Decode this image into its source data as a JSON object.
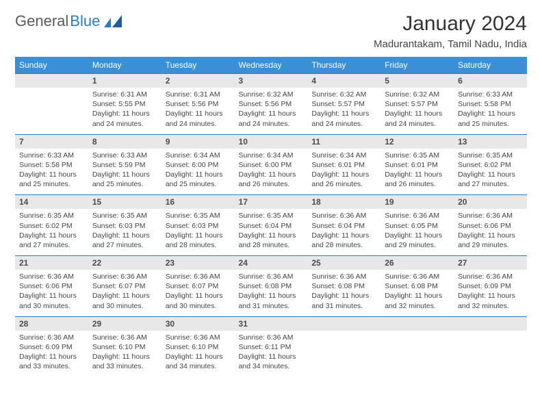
{
  "logo": {
    "text1": "General",
    "text2": "Blue"
  },
  "title": "January 2024",
  "location": "Madurantakam, Tamil Nadu, India",
  "header_bg": "#3b8fd4",
  "daynum_bg": "#e8e8e8",
  "border_color": "#2b7bbf",
  "days_of_week": [
    "Sunday",
    "Monday",
    "Tuesday",
    "Wednesday",
    "Thursday",
    "Friday",
    "Saturday"
  ],
  "weeks": [
    {
      "nums": [
        "",
        "1",
        "2",
        "3",
        "4",
        "5",
        "6"
      ],
      "cells": [
        {
          "sunrise": "",
          "sunset": "",
          "daylight": ""
        },
        {
          "sunrise": "Sunrise: 6:31 AM",
          "sunset": "Sunset: 5:55 PM",
          "daylight": "Daylight: 11 hours and 24 minutes."
        },
        {
          "sunrise": "Sunrise: 6:31 AM",
          "sunset": "Sunset: 5:56 PM",
          "daylight": "Daylight: 11 hours and 24 minutes."
        },
        {
          "sunrise": "Sunrise: 6:32 AM",
          "sunset": "Sunset: 5:56 PM",
          "daylight": "Daylight: 11 hours and 24 minutes."
        },
        {
          "sunrise": "Sunrise: 6:32 AM",
          "sunset": "Sunset: 5:57 PM",
          "daylight": "Daylight: 11 hours and 24 minutes."
        },
        {
          "sunrise": "Sunrise: 6:32 AM",
          "sunset": "Sunset: 5:57 PM",
          "daylight": "Daylight: 11 hours and 24 minutes."
        },
        {
          "sunrise": "Sunrise: 6:33 AM",
          "sunset": "Sunset: 5:58 PM",
          "daylight": "Daylight: 11 hours and 25 minutes."
        }
      ]
    },
    {
      "nums": [
        "7",
        "8",
        "9",
        "10",
        "11",
        "12",
        "13"
      ],
      "cells": [
        {
          "sunrise": "Sunrise: 6:33 AM",
          "sunset": "Sunset: 5:58 PM",
          "daylight": "Daylight: 11 hours and 25 minutes."
        },
        {
          "sunrise": "Sunrise: 6:33 AM",
          "sunset": "Sunset: 5:59 PM",
          "daylight": "Daylight: 11 hours and 25 minutes."
        },
        {
          "sunrise": "Sunrise: 6:34 AM",
          "sunset": "Sunset: 6:00 PM",
          "daylight": "Daylight: 11 hours and 25 minutes."
        },
        {
          "sunrise": "Sunrise: 6:34 AM",
          "sunset": "Sunset: 6:00 PM",
          "daylight": "Daylight: 11 hours and 26 minutes."
        },
        {
          "sunrise": "Sunrise: 6:34 AM",
          "sunset": "Sunset: 6:01 PM",
          "daylight": "Daylight: 11 hours and 26 minutes."
        },
        {
          "sunrise": "Sunrise: 6:35 AM",
          "sunset": "Sunset: 6:01 PM",
          "daylight": "Daylight: 11 hours and 26 minutes."
        },
        {
          "sunrise": "Sunrise: 6:35 AM",
          "sunset": "Sunset: 6:02 PM",
          "daylight": "Daylight: 11 hours and 27 minutes."
        }
      ]
    },
    {
      "nums": [
        "14",
        "15",
        "16",
        "17",
        "18",
        "19",
        "20"
      ],
      "cells": [
        {
          "sunrise": "Sunrise: 6:35 AM",
          "sunset": "Sunset: 6:02 PM",
          "daylight": "Daylight: 11 hours and 27 minutes."
        },
        {
          "sunrise": "Sunrise: 6:35 AM",
          "sunset": "Sunset: 6:03 PM",
          "daylight": "Daylight: 11 hours and 27 minutes."
        },
        {
          "sunrise": "Sunrise: 6:35 AM",
          "sunset": "Sunset: 6:03 PM",
          "daylight": "Daylight: 11 hours and 28 minutes."
        },
        {
          "sunrise": "Sunrise: 6:35 AM",
          "sunset": "Sunset: 6:04 PM",
          "daylight": "Daylight: 11 hours and 28 minutes."
        },
        {
          "sunrise": "Sunrise: 6:36 AM",
          "sunset": "Sunset: 6:04 PM",
          "daylight": "Daylight: 11 hours and 28 minutes."
        },
        {
          "sunrise": "Sunrise: 6:36 AM",
          "sunset": "Sunset: 6:05 PM",
          "daylight": "Daylight: 11 hours and 29 minutes."
        },
        {
          "sunrise": "Sunrise: 6:36 AM",
          "sunset": "Sunset: 6:06 PM",
          "daylight": "Daylight: 11 hours and 29 minutes."
        }
      ]
    },
    {
      "nums": [
        "21",
        "22",
        "23",
        "24",
        "25",
        "26",
        "27"
      ],
      "cells": [
        {
          "sunrise": "Sunrise: 6:36 AM",
          "sunset": "Sunset: 6:06 PM",
          "daylight": "Daylight: 11 hours and 30 minutes."
        },
        {
          "sunrise": "Sunrise: 6:36 AM",
          "sunset": "Sunset: 6:07 PM",
          "daylight": "Daylight: 11 hours and 30 minutes."
        },
        {
          "sunrise": "Sunrise: 6:36 AM",
          "sunset": "Sunset: 6:07 PM",
          "daylight": "Daylight: 11 hours and 30 minutes."
        },
        {
          "sunrise": "Sunrise: 6:36 AM",
          "sunset": "Sunset: 6:08 PM",
          "daylight": "Daylight: 11 hours and 31 minutes."
        },
        {
          "sunrise": "Sunrise: 6:36 AM",
          "sunset": "Sunset: 6:08 PM",
          "daylight": "Daylight: 11 hours and 31 minutes."
        },
        {
          "sunrise": "Sunrise: 6:36 AM",
          "sunset": "Sunset: 6:08 PM",
          "daylight": "Daylight: 11 hours and 32 minutes."
        },
        {
          "sunrise": "Sunrise: 6:36 AM",
          "sunset": "Sunset: 6:09 PM",
          "daylight": "Daylight: 11 hours and 32 minutes."
        }
      ]
    },
    {
      "nums": [
        "28",
        "29",
        "30",
        "31",
        "",
        "",
        ""
      ],
      "cells": [
        {
          "sunrise": "Sunrise: 6:36 AM",
          "sunset": "Sunset: 6:09 PM",
          "daylight": "Daylight: 11 hours and 33 minutes."
        },
        {
          "sunrise": "Sunrise: 6:36 AM",
          "sunset": "Sunset: 6:10 PM",
          "daylight": "Daylight: 11 hours and 33 minutes."
        },
        {
          "sunrise": "Sunrise: 6:36 AM",
          "sunset": "Sunset: 6:10 PM",
          "daylight": "Daylight: 11 hours and 34 minutes."
        },
        {
          "sunrise": "Sunrise: 6:36 AM",
          "sunset": "Sunset: 6:11 PM",
          "daylight": "Daylight: 11 hours and 34 minutes."
        },
        {
          "sunrise": "",
          "sunset": "",
          "daylight": ""
        },
        {
          "sunrise": "",
          "sunset": "",
          "daylight": ""
        },
        {
          "sunrise": "",
          "sunset": "",
          "daylight": ""
        }
      ]
    }
  ]
}
